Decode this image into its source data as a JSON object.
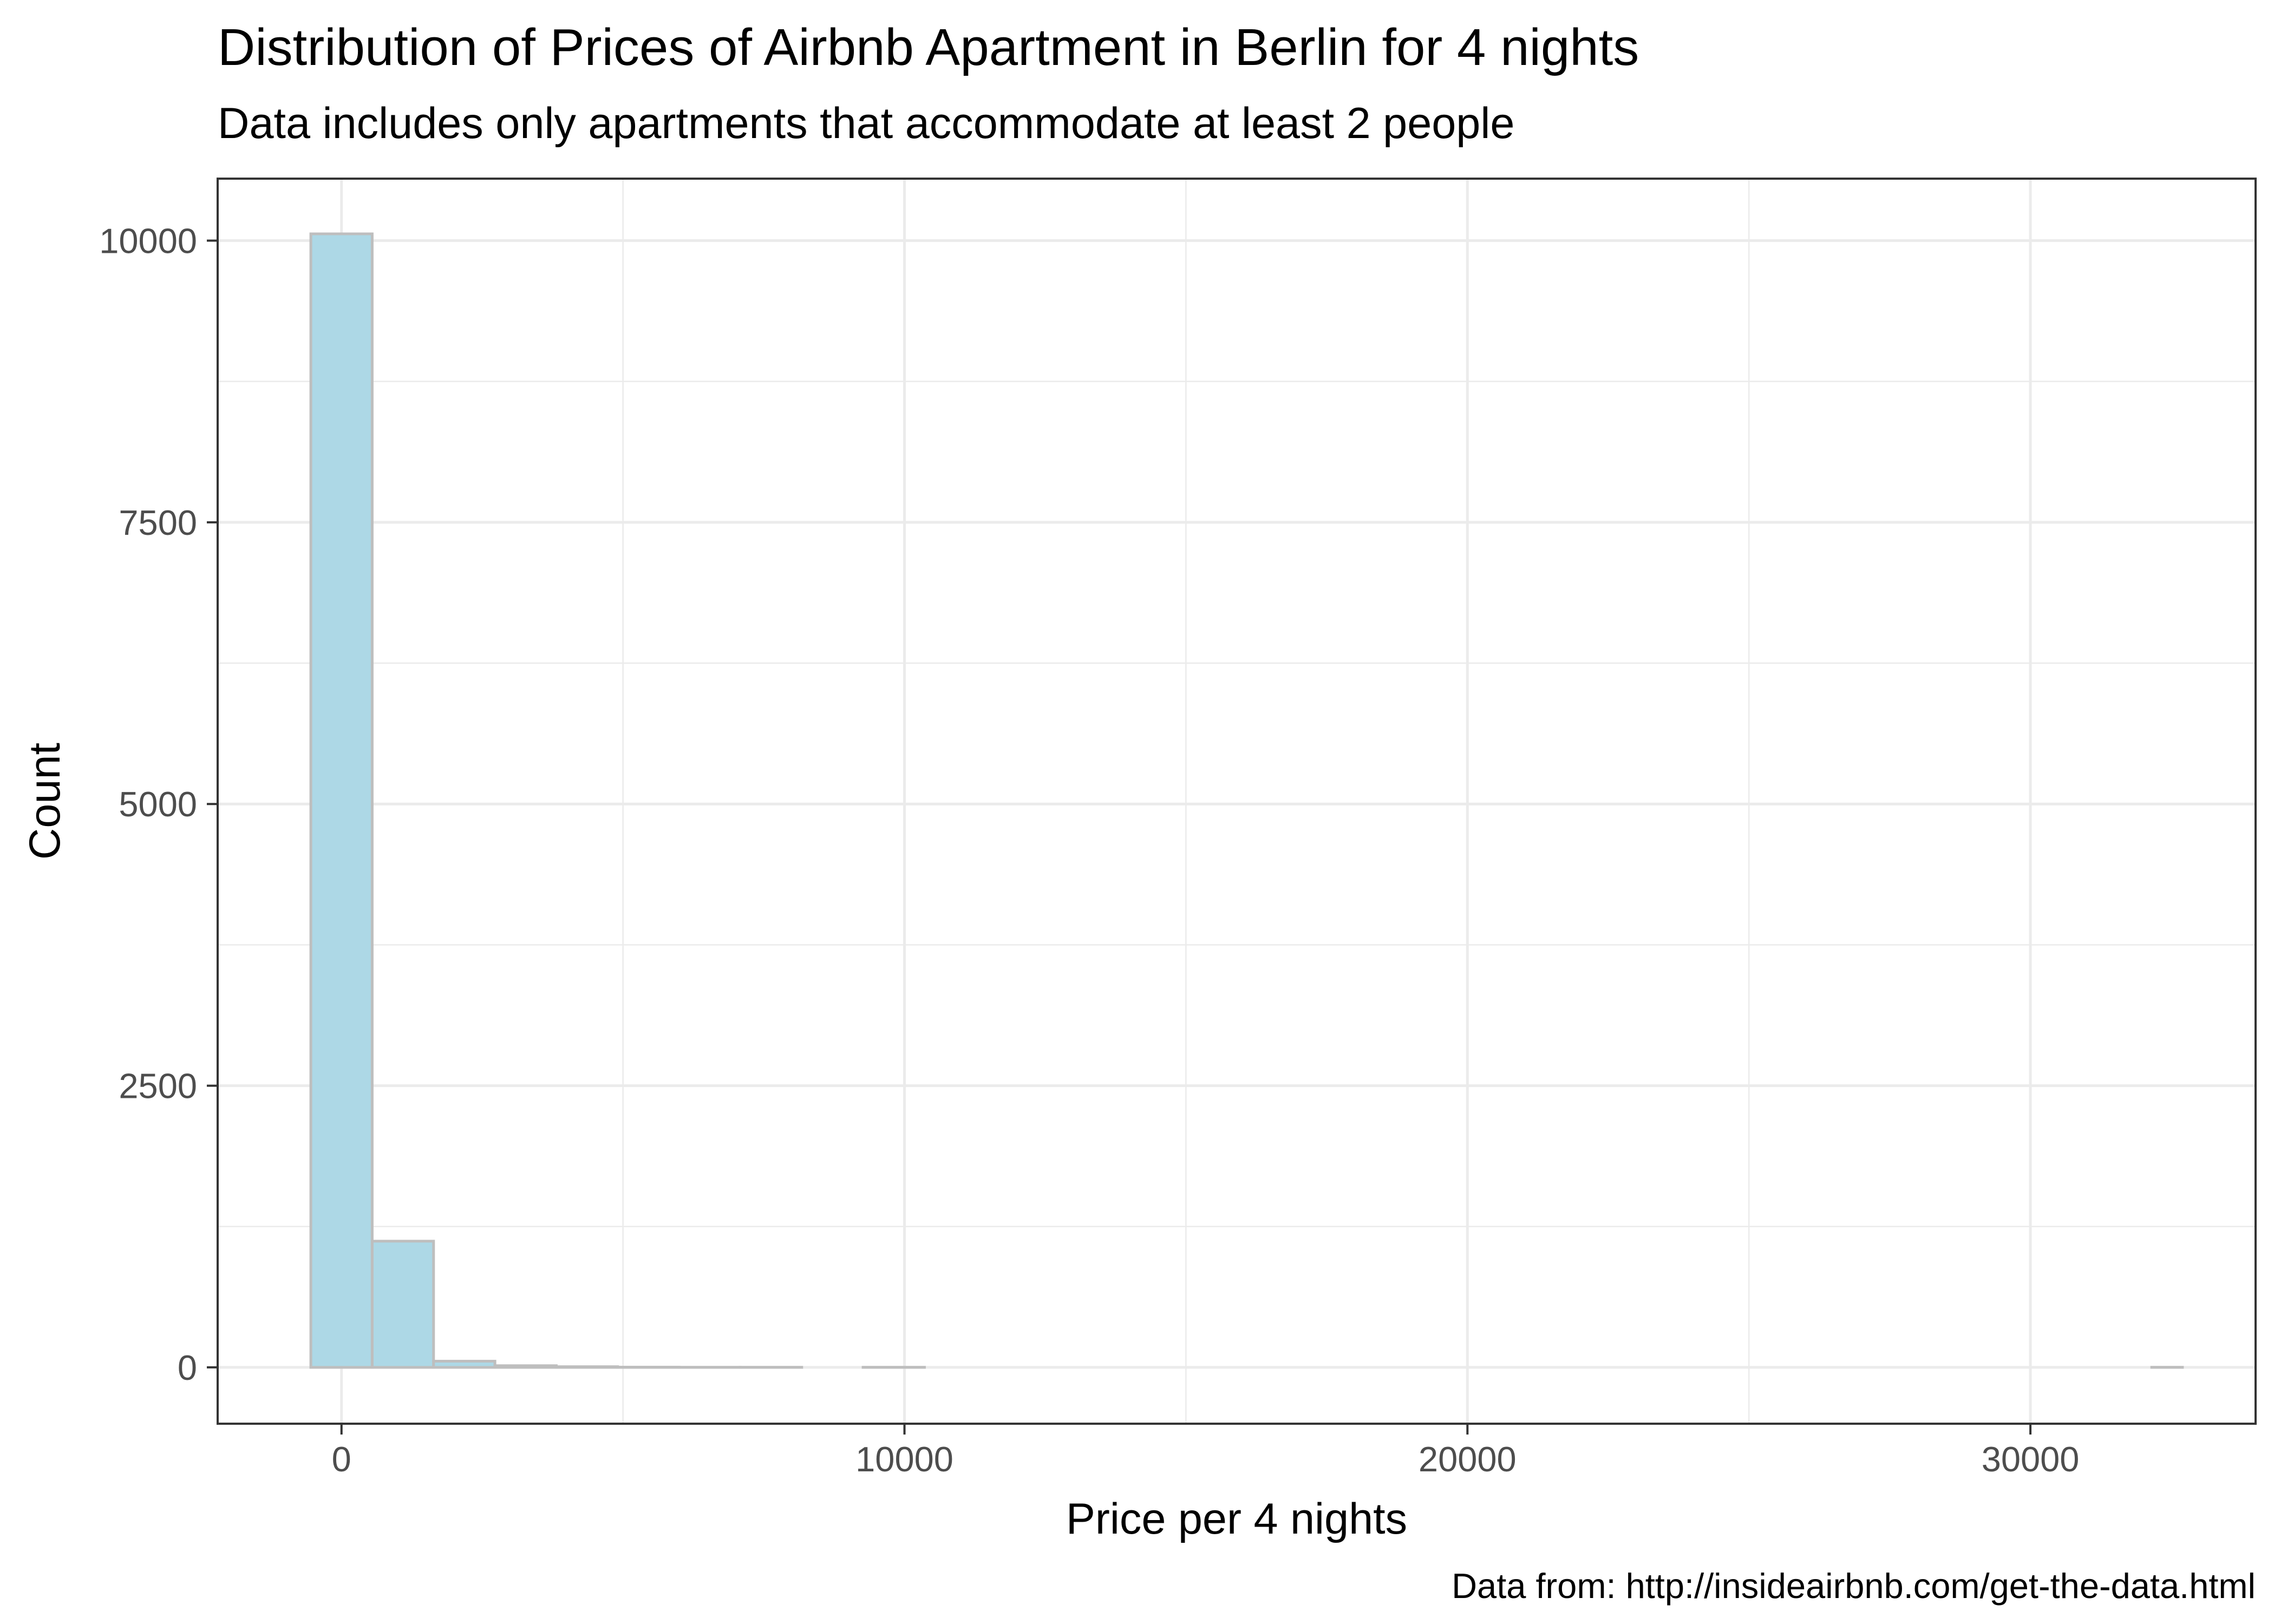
{
  "chart_data": {
    "type": "bar",
    "title": "Distribution of Prices of Airbnb Apartment in Berlin for 4 nights",
    "subtitle": "Data includes only apartments that accommodate at least 2 people",
    "caption": "Data from: http://insideairbnb.com/get-the-data.html",
    "xlabel": "Price per 4 nights",
    "ylabel": "Count",
    "xlim": [
      -2200,
      34000
    ],
    "ylim": [
      -500,
      10550
    ],
    "x_major_ticks": [
      0,
      10000,
      20000,
      30000
    ],
    "x_minor_ticks": [
      5000,
      15000,
      25000
    ],
    "y_major_ticks": [
      0,
      2500,
      5000,
      7500,
      10000
    ],
    "y_minor_ticks": [
      1250,
      3750,
      6250,
      8750
    ],
    "x_tick_labels": [
      "0",
      "10000",
      "20000",
      "30000"
    ],
    "y_tick_labels": [
      "0",
      "2500",
      "5000",
      "7500",
      "10000"
    ],
    "bin_width": 1090,
    "bins": [
      {
        "x0": -545,
        "x1": 545,
        "count": 10060
      },
      {
        "x0": 545,
        "x1": 1635,
        "count": 1120
      },
      {
        "x0": 1635,
        "x1": 2725,
        "count": 55
      },
      {
        "x0": 2725,
        "x1": 3815,
        "count": 15
      },
      {
        "x0": 3815,
        "x1": 4905,
        "count": 6
      },
      {
        "x0": 4905,
        "x1": 5995,
        "count": 2
      },
      {
        "x0": 5995,
        "x1": 7085,
        "count": 1
      },
      {
        "x0": 7085,
        "x1": 8175,
        "count": 1
      },
      {
        "x0": 8175,
        "x1": 9265,
        "count": 0
      },
      {
        "x0": 9265,
        "x1": 10355,
        "count": 1
      },
      {
        "x0": 10355,
        "x1": 11445,
        "count": 0
      },
      {
        "x0": 11445,
        "x1": 12535,
        "count": 0
      },
      {
        "x0": 12535,
        "x1": 13625,
        "count": 0
      },
      {
        "x0": 13625,
        "x1": 14715,
        "count": 0
      },
      {
        "x0": 14715,
        "x1": 15805,
        "count": 0
      },
      {
        "x0": 15805,
        "x1": 16895,
        "count": 0
      },
      {
        "x0": 16895,
        "x1": 17985,
        "count": 0
      },
      {
        "x0": 17985,
        "x1": 19075,
        "count": 0
      },
      {
        "x0": 19075,
        "x1": 20165,
        "count": 0
      },
      {
        "x0": 20165,
        "x1": 21255,
        "count": 0
      },
      {
        "x0": 21255,
        "x1": 22345,
        "count": 0
      },
      {
        "x0": 22345,
        "x1": 23435,
        "count": 0
      },
      {
        "x0": 23435,
        "x1": 24525,
        "count": 0
      },
      {
        "x0": 24525,
        "x1": 25615,
        "count": 0
      },
      {
        "x0": 25615,
        "x1": 26705,
        "count": 0
      },
      {
        "x0": 26705,
        "x1": 27795,
        "count": 0
      },
      {
        "x0": 27795,
        "x1": 28885,
        "count": 0
      },
      {
        "x0": 28885,
        "x1": 29975,
        "count": 0
      },
      {
        "x0": 29975,
        "x1": 31065,
        "count": 0
      },
      {
        "x0": 31065,
        "x1": 32155,
        "count": 0
      },
      {
        "x0": 32155,
        "x1": 32700,
        "count": 1
      }
    ],
    "grid": true,
    "legend": "none",
    "colors": {
      "bar_fill": "#add8e6",
      "bar_outline": "#bebebe",
      "grid": "#ebebeb",
      "panel_border": "#333333",
      "tick_label": "#4d4d4d"
    }
  }
}
